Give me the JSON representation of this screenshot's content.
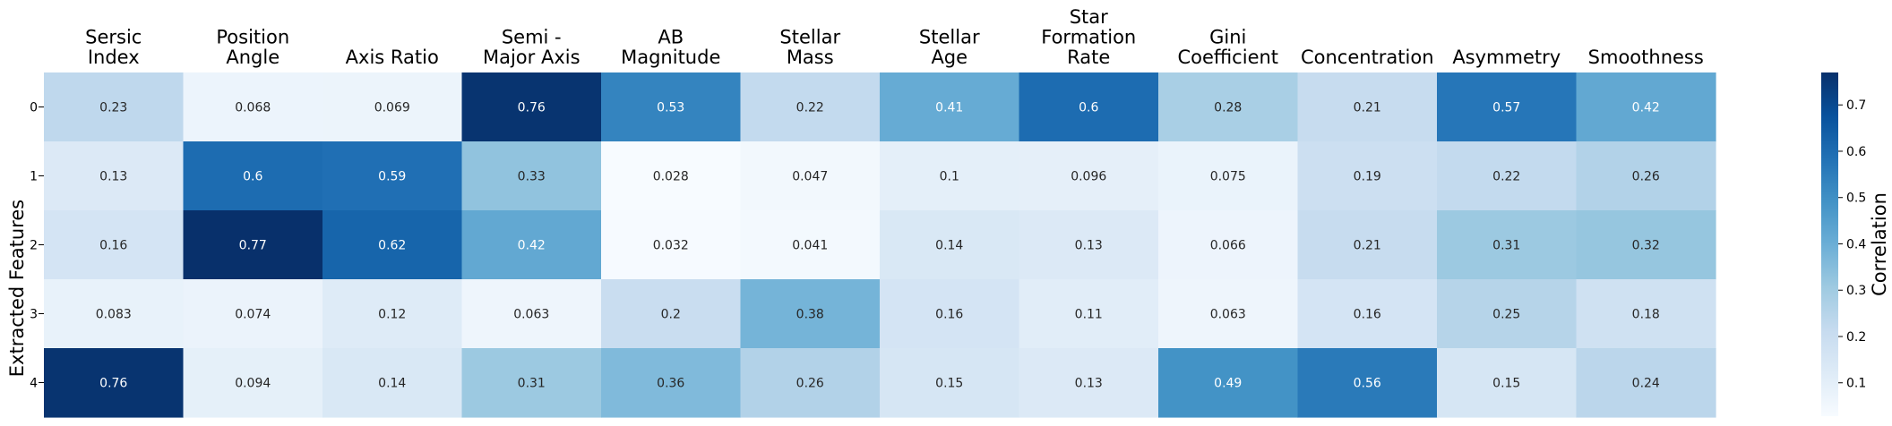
{
  "chart_data": {
    "type": "heatmap",
    "title": "",
    "columns": [
      [
        "Sersic",
        "Index"
      ],
      [
        "Position",
        "Angle"
      ],
      [
        "Axis Ratio"
      ],
      [
        "Semi -",
        "Major Axis"
      ],
      [
        "AB",
        "Magnitude"
      ],
      [
        "Stellar",
        "Mass"
      ],
      [
        "Stellar",
        "Age"
      ],
      [
        "Star",
        "Formation",
        "Rate"
      ],
      [
        "Gini",
        "Coefficient"
      ],
      [
        "Concentration"
      ],
      [
        "Asymmetry"
      ],
      [
        "Smoothness"
      ]
    ],
    "rows": [
      "0",
      "1",
      "2",
      "3",
      "4"
    ],
    "ylabel": "Extracted Features",
    "values": [
      [
        "0.23",
        "0.068",
        "0.069",
        "0.76",
        "0.53",
        "0.22",
        "0.41",
        "0.6",
        "0.28",
        "0.21",
        "0.57",
        "0.42"
      ],
      [
        "0.13",
        "0.6",
        "0.59",
        "0.33",
        "0.028",
        "0.047",
        "0.1",
        "0.096",
        "0.075",
        "0.19",
        "0.22",
        "0.26"
      ],
      [
        "0.16",
        "0.77",
        "0.62",
        "0.42",
        "0.032",
        "0.041",
        "0.14",
        "0.13",
        "0.066",
        "0.21",
        "0.31",
        "0.32"
      ],
      [
        "0.083",
        "0.074",
        "0.12",
        "0.063",
        "0.2",
        "0.38",
        "0.16",
        "0.11",
        "0.063",
        "0.16",
        "0.25",
        "0.18"
      ],
      [
        "0.76",
        "0.094",
        "0.14",
        "0.31",
        "0.36",
        "0.26",
        "0.15",
        "0.13",
        "0.49",
        "0.56",
        "0.15",
        "0.24"
      ]
    ],
    "colorbar": {
      "label": "Correlation",
      "ticks": [
        "0.1",
        "0.2",
        "0.3",
        "0.4",
        "0.5",
        "0.6",
        "0.7"
      ],
      "range": [
        0.028,
        0.77
      ],
      "colormap": "Blues"
    },
    "colors": {
      "low": "#f7fbff",
      "high": "#08306b",
      "text_dark": "#262626",
      "text_light": "#ffffff"
    }
  }
}
